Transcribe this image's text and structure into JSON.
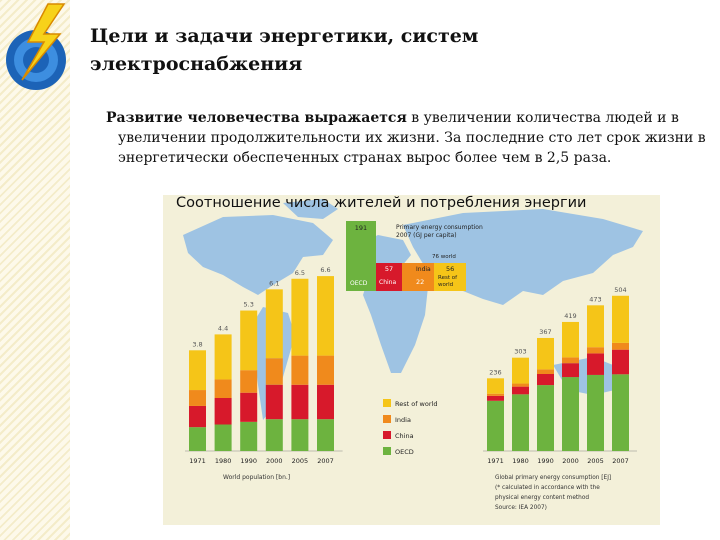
{
  "slide": {
    "title_line1": "Цели и задачи энергетики, систем",
    "title_line2": "электроснабжения",
    "body_bold": "Развитие человечества выражается",
    "body_rest": " в увеличении количества людей и в увеличении продолжительности их жизни. За последние сто лет срок жизни в энергетически обеспеченных странах вырос более чем в 2,5 раза."
  },
  "figure": {
    "title": "Соотношение числа жителей и потребления энергии",
    "map_color": "#9ec3e3",
    "legend": [
      {
        "label": "Rest of world",
        "color": "#f5c518"
      },
      {
        "label": "India",
        "color": "#f08a1c"
      },
      {
        "label": "China",
        "color": "#d7192b"
      },
      {
        "label": "OECD",
        "color": "#6db33f"
      }
    ],
    "inset": {
      "label_lines": [
        "Primary energy consumption",
        "2007 (GJ per capita)"
      ],
      "oecd_value": "191",
      "oecd_label": "OECD",
      "china_value": "57",
      "china_label": "China",
      "india_value": "22",
      "india_label": "India",
      "world_value": "76 world",
      "row_value": "56",
      "row_label_lines": [
        "Rest of",
        "world"
      ]
    },
    "left_footnote": "World population [bn.]",
    "right_footnote_lines": [
      "Global primary energy consumption [EJ]",
      "(* calculated in accordance with the",
      "physical energy content method",
      "Source: IEA 2007)"
    ]
  },
  "chart_data": [
    {
      "type": "bar",
      "stacked": true,
      "title": "",
      "xlabel": "World population [bn.]",
      "ylabel": "",
      "categories": [
        "1971",
        "1980",
        "1990",
        "2000",
        "2005",
        "2007"
      ],
      "totals": [
        3.8,
        4.4,
        5.3,
        6.1,
        6.5,
        6.6
      ],
      "total_labels": [
        "3.8",
        "4.4",
        "5.3",
        "6.1",
        "6.5",
        "6.6"
      ],
      "ylim": [
        0,
        7
      ],
      "series": [
        {
          "name": "OECD",
          "values": [
            0.9,
            1.0,
            1.1,
            1.2,
            1.2,
            1.2
          ]
        },
        {
          "name": "China",
          "values": [
            0.8,
            1.0,
            1.1,
            1.3,
            1.3,
            1.3
          ]
        },
        {
          "name": "India",
          "values": [
            0.6,
            0.7,
            0.85,
            1.0,
            1.1,
            1.1
          ]
        },
        {
          "name": "Rest of world",
          "values": [
            1.5,
            1.7,
            2.25,
            2.6,
            2.9,
            3.0
          ]
        }
      ]
    },
    {
      "type": "bar",
      "stacked": true,
      "title": "",
      "xlabel": "Global primary energy consumption [EJ]",
      "ylabel": "",
      "categories": [
        "1971",
        "1980",
        "1990",
        "2000",
        "2005",
        "2007"
      ],
      "totals": [
        236,
        303,
        367,
        419,
        473,
        504
      ],
      "total_labels": [
        "236",
        "303",
        "367",
        "419",
        "473",
        "504"
      ],
      "ylim": [
        0,
        550
      ],
      "series": [
        {
          "name": "OECD",
          "values": [
            163,
            184,
            214,
            240,
            247,
            249
          ]
        },
        {
          "name": "China",
          "values": [
            16,
            25,
            36,
            45,
            70,
            80
          ]
        },
        {
          "name": "India",
          "values": [
            7,
            10,
            15,
            19,
            20,
            22
          ]
        },
        {
          "name": "Rest of world",
          "values": [
            50,
            84,
            102,
            115,
            136,
            153
          ]
        }
      ]
    }
  ]
}
